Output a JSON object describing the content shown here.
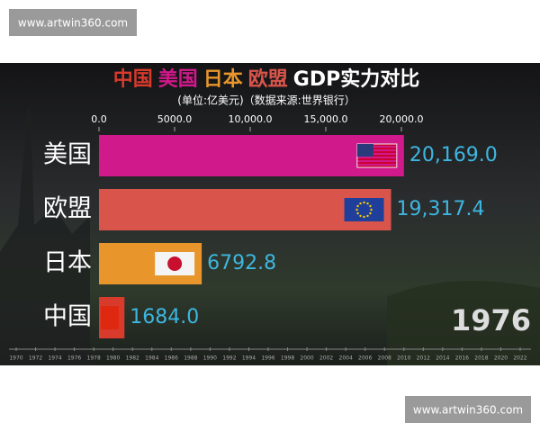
{
  "watermarks": [
    "www.artwin360.com",
    "www.artwin360.com"
  ],
  "chart_data": {
    "type": "bar",
    "orientation": "horizontal",
    "title": [
      "中国",
      "美国",
      "日本",
      "欧盟",
      "GDP实力对比"
    ],
    "subtitle": "(单位:亿美元)（数据来源:世界银行）",
    "categories": [
      "美国",
      "欧盟",
      "日本",
      "中国"
    ],
    "values": [
      20169.0,
      19317.4,
      6792.8,
      1684.0
    ],
    "value_labels": [
      "20,169.0",
      "19,317.4",
      "6792.8",
      "1684.0"
    ],
    "colors": [
      "#d0198a",
      "#d9554b",
      "#e8962b",
      "#d83a2c"
    ],
    "value_label_color": "#3db6e0",
    "xlim": [
      0,
      20000
    ],
    "xticks": [
      {
        "value": 0,
        "label": "0.0"
      },
      {
        "value": 5000,
        "label": "5000.0"
      },
      {
        "value": 10000,
        "label": "10,000.0"
      },
      {
        "value": 15000,
        "label": "15,000.0"
      },
      {
        "value": 20000,
        "label": "20,000.0"
      }
    ],
    "year": 1976,
    "timeline": [
      1970,
      1972,
      1974,
      1976,
      1978,
      1980,
      1982,
      1984,
      1986,
      1988,
      1990,
      1992,
      1994,
      1996,
      1998,
      2000,
      2002,
      2004,
      2006,
      2008,
      2010,
      2012,
      2014,
      2016,
      2018,
      2020,
      2022
    ]
  }
}
